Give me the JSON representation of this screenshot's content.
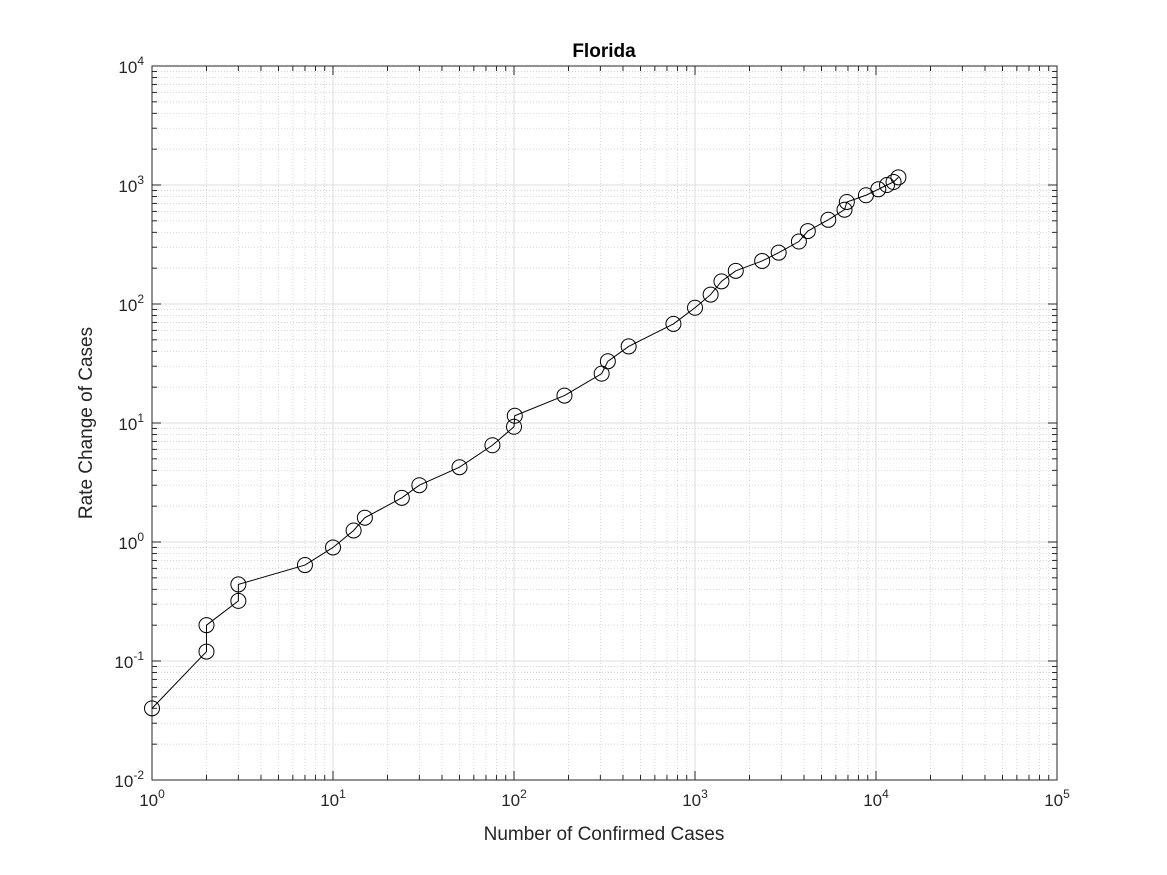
{
  "chart_data": {
    "type": "line",
    "title": "Florida",
    "xlabel": "Number of Confirmed Cases",
    "ylabel": "Rate Change of Cases",
    "xscale": "log",
    "yscale": "log",
    "xlim": [
      1,
      100000
    ],
    "ylim": [
      0.01,
      10000
    ],
    "grid": true,
    "minor_grid": true,
    "marker": "circle",
    "line_color": "#000000",
    "x_ticks": [
      {
        "base": "10",
        "exp": "0"
      },
      {
        "base": "10",
        "exp": "1"
      },
      {
        "base": "10",
        "exp": "2"
      },
      {
        "base": "10",
        "exp": "3"
      },
      {
        "base": "10",
        "exp": "4"
      },
      {
        "base": "10",
        "exp": "5"
      }
    ],
    "y_ticks": [
      {
        "base": "10",
        "exp": "-2"
      },
      {
        "base": "10",
        "exp": "-1"
      },
      {
        "base": "10",
        "exp": "0"
      },
      {
        "base": "10",
        "exp": "1"
      },
      {
        "base": "10",
        "exp": "2"
      },
      {
        "base": "10",
        "exp": "3"
      },
      {
        "base": "10",
        "exp": "4"
      }
    ],
    "series": [
      {
        "x": [
          1,
          2,
          2,
          3,
          3,
          7,
          10,
          13,
          15,
          24,
          30,
          50,
          76,
          100,
          101,
          190,
          305,
          330,
          430,
          760,
          1000,
          1220,
          1400,
          1680,
          2350,
          2900,
          3750,
          4200,
          5450,
          6700,
          6900,
          8800,
          10300,
          11500,
          12500,
          13300
        ],
        "y": [
          0.04,
          0.12,
          0.2,
          0.32,
          0.44,
          0.64,
          0.9,
          1.25,
          1.6,
          2.35,
          3.0,
          4.25,
          6.5,
          9.3,
          11.5,
          17,
          26,
          33,
          44,
          68,
          93,
          120,
          155,
          190,
          230,
          270,
          335,
          410,
          510,
          620,
          720,
          820,
          920,
          1000,
          1060,
          1160
        ]
      }
    ]
  }
}
